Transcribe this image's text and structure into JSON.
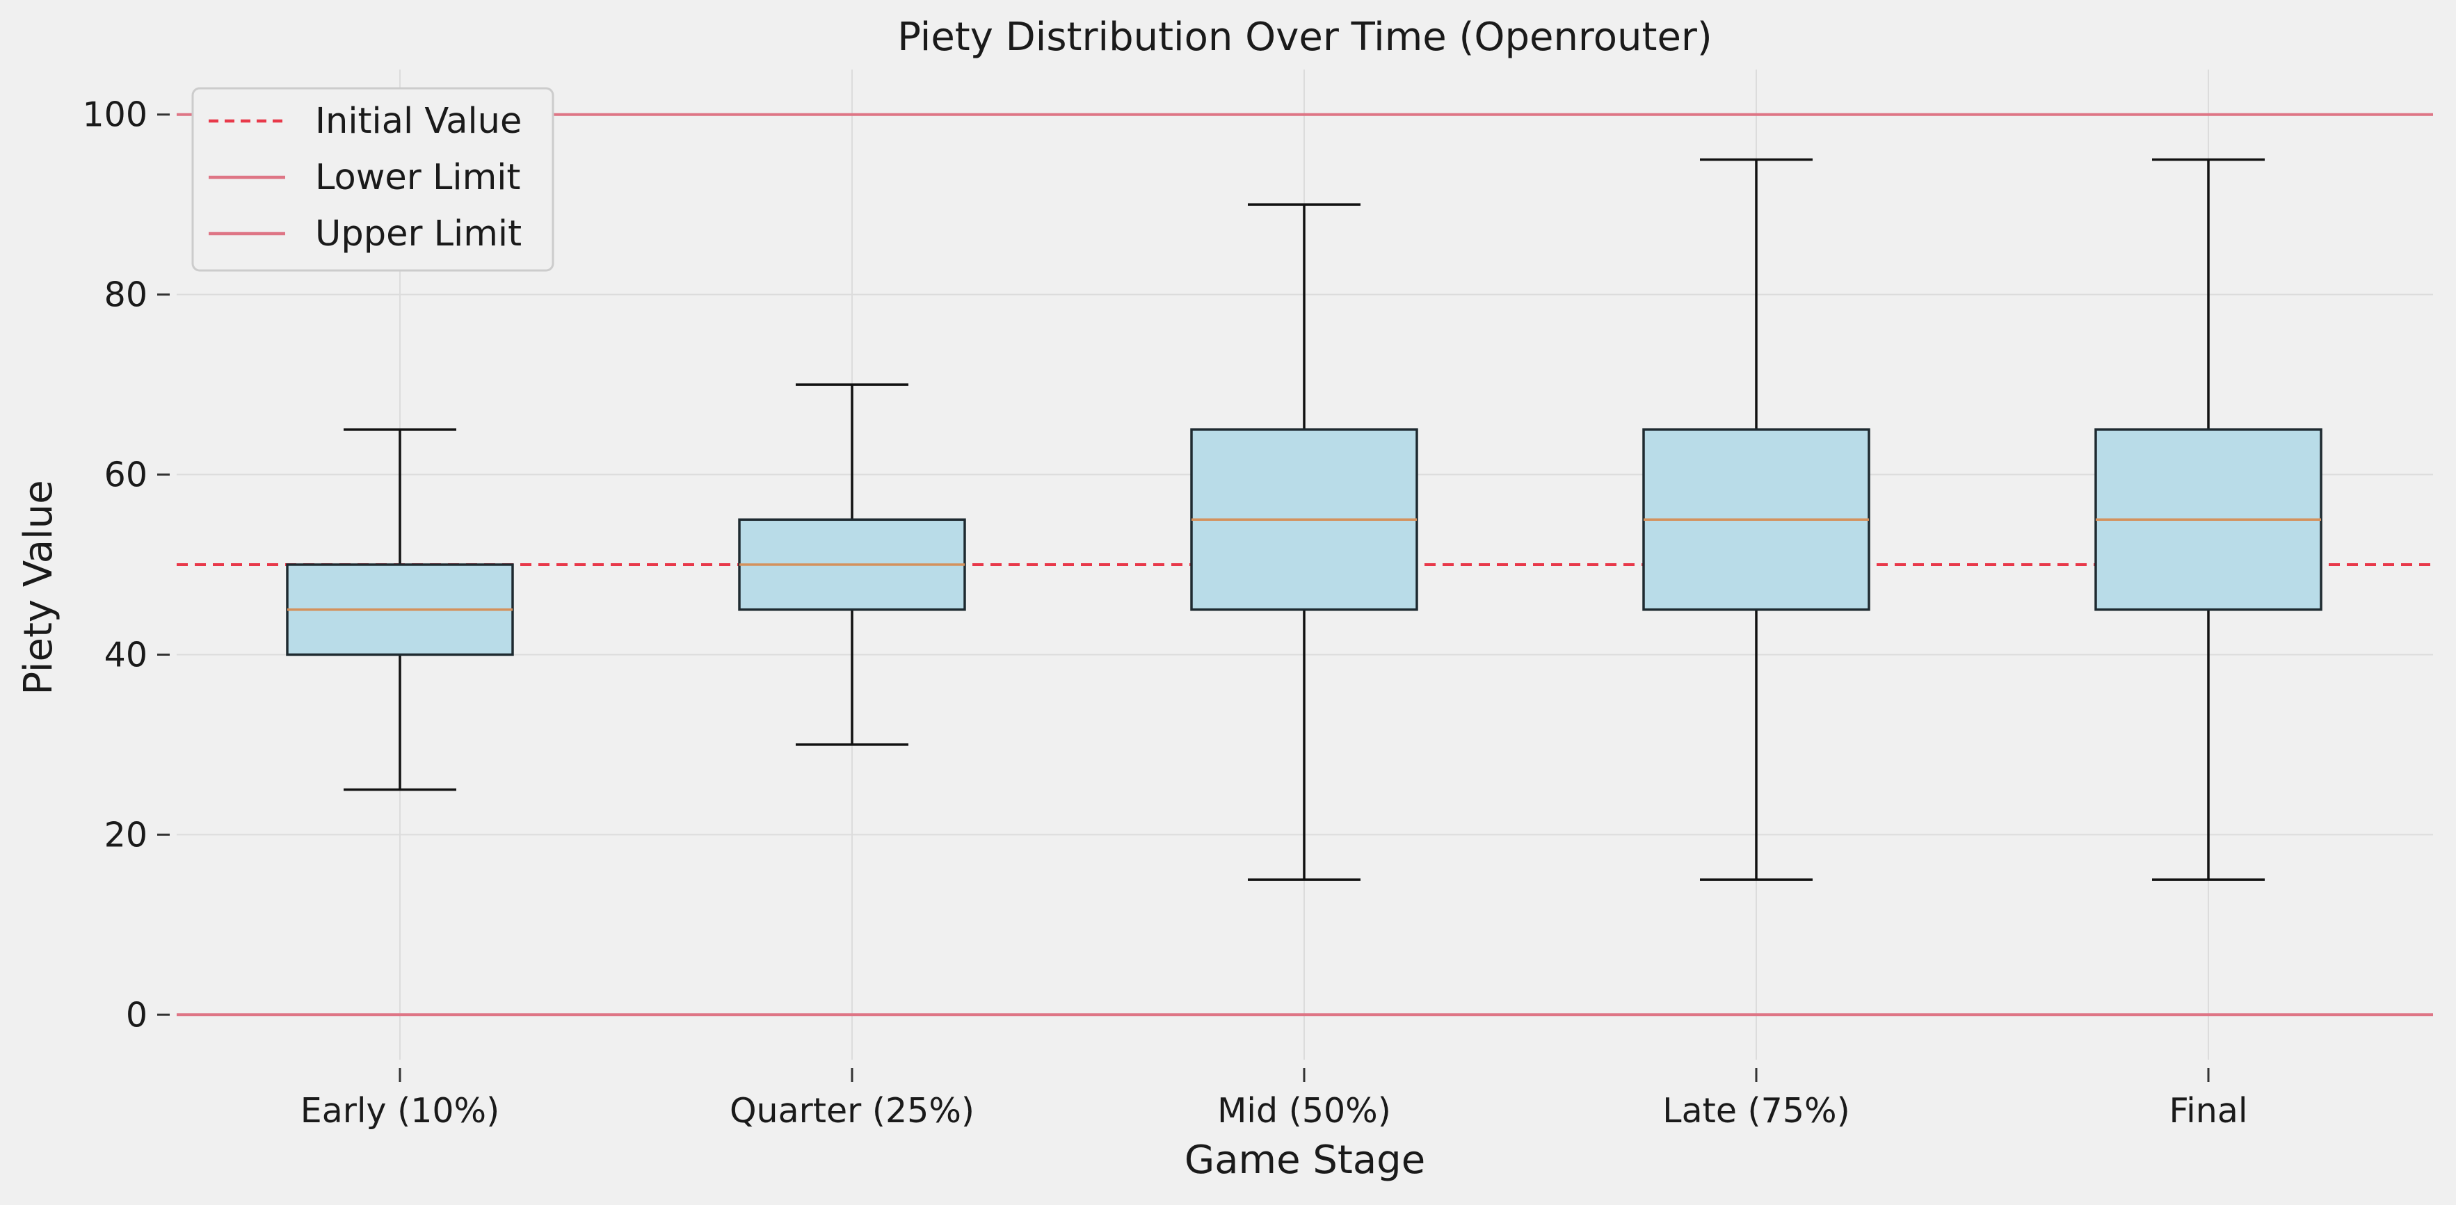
{
  "chart_data": {
    "type": "box",
    "title": "Piety Distribution Over Time (Openrouter)",
    "xlabel": "Game Stage",
    "ylabel": "Piety Value",
    "ylim": [
      -5,
      105
    ],
    "yticks": [
      0,
      20,
      40,
      60,
      80,
      100
    ],
    "grid": true,
    "legend_position": "top-left",
    "categories": [
      "Early (10%)",
      "Quarter (25%)",
      "Mid (50%)",
      "Late (75%)",
      "Final"
    ],
    "boxes": [
      {
        "category": "Early (10%)",
        "whisker_low": 25,
        "q1": 40,
        "median": 45,
        "q3": 50,
        "whisker_high": 65
      },
      {
        "category": "Quarter (25%)",
        "whisker_low": 30,
        "q1": 45,
        "median": 50,
        "q3": 55,
        "whisker_high": 70
      },
      {
        "category": "Mid (50%)",
        "whisker_low": 15,
        "q1": 45,
        "median": 55,
        "q3": 65,
        "whisker_high": 90
      },
      {
        "category": "Late (75%)",
        "whisker_low": 15,
        "q1": 45,
        "median": 55,
        "q3": 65,
        "whisker_high": 95
      },
      {
        "category": "Final",
        "whisker_low": 15,
        "q1": 45,
        "median": 55,
        "q3": 65,
        "whisker_high": 95
      }
    ],
    "reference_lines": [
      {
        "name": "Initial Value",
        "y": 50,
        "style": "dashed",
        "color": "#e8394a"
      },
      {
        "name": "Lower Limit",
        "y": 0,
        "style": "solid",
        "color": "#de7585"
      },
      {
        "name": "Upper Limit",
        "y": 100,
        "style": "solid",
        "color": "#de7585"
      }
    ],
    "colors": {
      "box_fill": "#b9dce8",
      "box_edge": "#1e2a30",
      "median": "#d4915c",
      "whisker": "#111111",
      "background": "#f0f0f0",
      "grid": "#dcdcdc"
    }
  }
}
